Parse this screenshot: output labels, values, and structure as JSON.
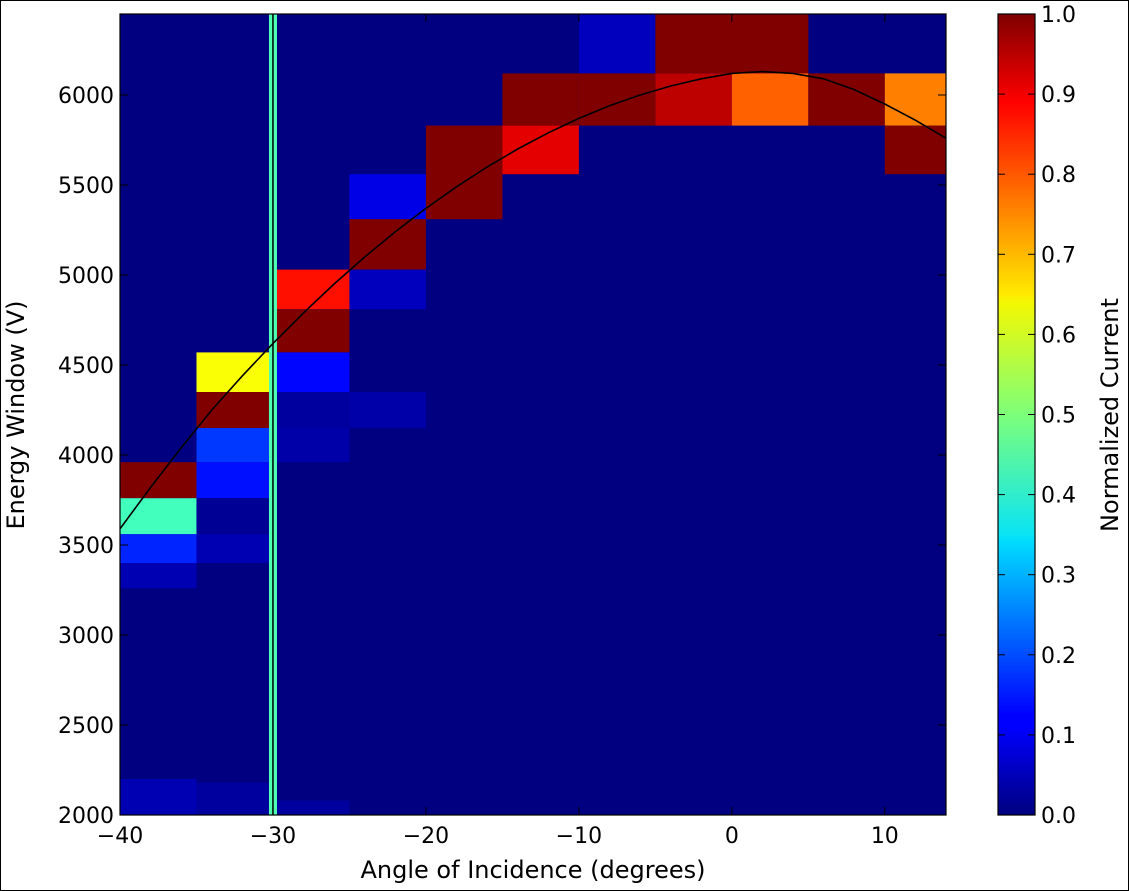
{
  "chart_data": {
    "type": "heatmap",
    "title": "",
    "xlabel": "Angle of Incidence (degrees)",
    "ylabel": "Energy Window (V)",
    "colorbar_label": "Normalized Current",
    "colormap": "jet",
    "xlim": [
      -40,
      14
    ],
    "ylim": [
      2000,
      6450
    ],
    "clim": [
      0,
      1
    ],
    "x_ticks": [
      -40,
      -30,
      -20,
      -10,
      0,
      10
    ],
    "x_tick_labels": [
      "−40",
      "−30",
      "−20",
      "−10",
      "0",
      "10"
    ],
    "y_ticks": [
      2000,
      2500,
      3000,
      3500,
      4000,
      4500,
      5000,
      5500,
      6000
    ],
    "y_tick_labels": [
      "2000",
      "2500",
      "3000",
      "3500",
      "4000",
      "4500",
      "5000",
      "5500",
      "6000"
    ],
    "colorbar_ticks": [
      0.0,
      0.1,
      0.2,
      0.3,
      0.4,
      0.5,
      0.6,
      0.7,
      0.8,
      0.9,
      1.0
    ],
    "colorbar_tick_labels": [
      "0.0",
      "0.1",
      "0.2",
      "0.3",
      "0.4",
      "0.5",
      "0.6",
      "0.7",
      "0.8",
      "0.9",
      "1.0"
    ],
    "cells": [
      {
        "x0": -40,
        "x1": -35,
        "y0": 3760,
        "y1": 3960,
        "value": 1.0
      },
      {
        "x0": -40,
        "x1": -35,
        "y0": 3560,
        "y1": 3760,
        "value": 0.44
      },
      {
        "x0": -40,
        "x1": -35,
        "y0": 3400,
        "y1": 3560,
        "value": 0.16
      },
      {
        "x0": -40,
        "x1": -35,
        "y0": 3260,
        "y1": 3400,
        "value": 0.05
      },
      {
        "x0": -40,
        "x1": -35,
        "y0": 2000,
        "y1": 2200,
        "value": 0.05
      },
      {
        "x0": -35,
        "x1": -30,
        "y0": 4350,
        "y1": 4570,
        "value": 0.62
      },
      {
        "x0": -35,
        "x1": -30,
        "y0": 4150,
        "y1": 4350,
        "value": 1.0
      },
      {
        "x0": -35,
        "x1": -30,
        "y0": 3960,
        "y1": 4150,
        "value": 0.18
      },
      {
        "x0": -35,
        "x1": -30,
        "y0": 3760,
        "y1": 3960,
        "value": 0.14
      },
      {
        "x0": -35,
        "x1": -30,
        "y0": 3560,
        "y1": 3760,
        "value": 0.02
      },
      {
        "x0": -35,
        "x1": -30,
        "y0": 3400,
        "y1": 3560,
        "value": 0.05
      },
      {
        "x0": -35,
        "x1": -30,
        "y0": 2000,
        "y1": 2180,
        "value": 0.03
      },
      {
        "x0": -30,
        "x1": -25,
        "y0": 4810,
        "y1": 5030,
        "value": 0.86
      },
      {
        "x0": -30,
        "x1": -25,
        "y0": 4570,
        "y1": 4810,
        "value": 1.0
      },
      {
        "x0": -30,
        "x1": -25,
        "y0": 4350,
        "y1": 4570,
        "value": 0.13
      },
      {
        "x0": -30,
        "x1": -25,
        "y0": 4150,
        "y1": 4350,
        "value": 0.03
      },
      {
        "x0": -30,
        "x1": -25,
        "y0": 3960,
        "y1": 4150,
        "value": 0.04
      },
      {
        "x0": -30,
        "x1": -25,
        "y0": 2000,
        "y1": 2080,
        "value": 0.03
      },
      {
        "x0": -25,
        "x1": -20,
        "y0": 5310,
        "y1": 5560,
        "value": 0.1
      },
      {
        "x0": -25,
        "x1": -20,
        "y0": 5030,
        "y1": 5310,
        "value": 1.0
      },
      {
        "x0": -25,
        "x1": -20,
        "y0": 4810,
        "y1": 5030,
        "value": 0.06
      },
      {
        "x0": -25,
        "x1": -20,
        "y0": 4150,
        "y1": 4350,
        "value": 0.04
      },
      {
        "x0": -20,
        "x1": -15,
        "y0": 5310,
        "y1": 5830,
        "value": 1.0
      },
      {
        "x0": -15,
        "x1": -10,
        "y0": 5830,
        "y1": 6120,
        "value": 1.0
      },
      {
        "x0": -15,
        "x1": -10,
        "y0": 5560,
        "y1": 5830,
        "value": 0.9
      },
      {
        "x0": -10,
        "x1": -5,
        "y0": 6120,
        "y1": 6450,
        "value": 0.06
      },
      {
        "x0": -10,
        "x1": -5,
        "y0": 5830,
        "y1": 6120,
        "value": 1.0
      },
      {
        "x0": -5,
        "x1": 5,
        "y0": 6120,
        "y1": 6450,
        "value": 1.0
      },
      {
        "x0": -5,
        "x1": 0,
        "y0": 5830,
        "y1": 6120,
        "value": 0.94
      },
      {
        "x0": 0,
        "x1": 5,
        "y0": 5830,
        "y1": 6120,
        "value": 0.78
      },
      {
        "x0": 5,
        "x1": 10,
        "y0": 5830,
        "y1": 6120,
        "value": 1.0
      },
      {
        "x0": 10,
        "x1": 14,
        "y0": 5830,
        "y1": 6120,
        "value": 0.75
      },
      {
        "x0": 10,
        "x1": 14,
        "y0": 5560,
        "y1": 5830,
        "value": 1.0
      }
    ],
    "vertical_line": {
      "x": -30,
      "value": 0.45
    },
    "fit_curve": {
      "x": [
        -40,
        -38,
        -36,
        -34,
        -32,
        -30,
        -28,
        -26,
        -24,
        -22,
        -20,
        -18,
        -16,
        -14,
        -12,
        -10,
        -8,
        -6,
        -4,
        -2,
        0,
        2,
        4,
        6,
        8,
        10,
        12,
        14
      ],
      "y": [
        3590,
        3820,
        4040,
        4250,
        4440,
        4620,
        4790,
        4950,
        5100,
        5240,
        5370,
        5490,
        5600,
        5700,
        5790,
        5870,
        5940,
        6000,
        6050,
        6090,
        6120,
        6130,
        6120,
        6090,
        6030,
        5950,
        5860,
        5760
      ]
    }
  }
}
